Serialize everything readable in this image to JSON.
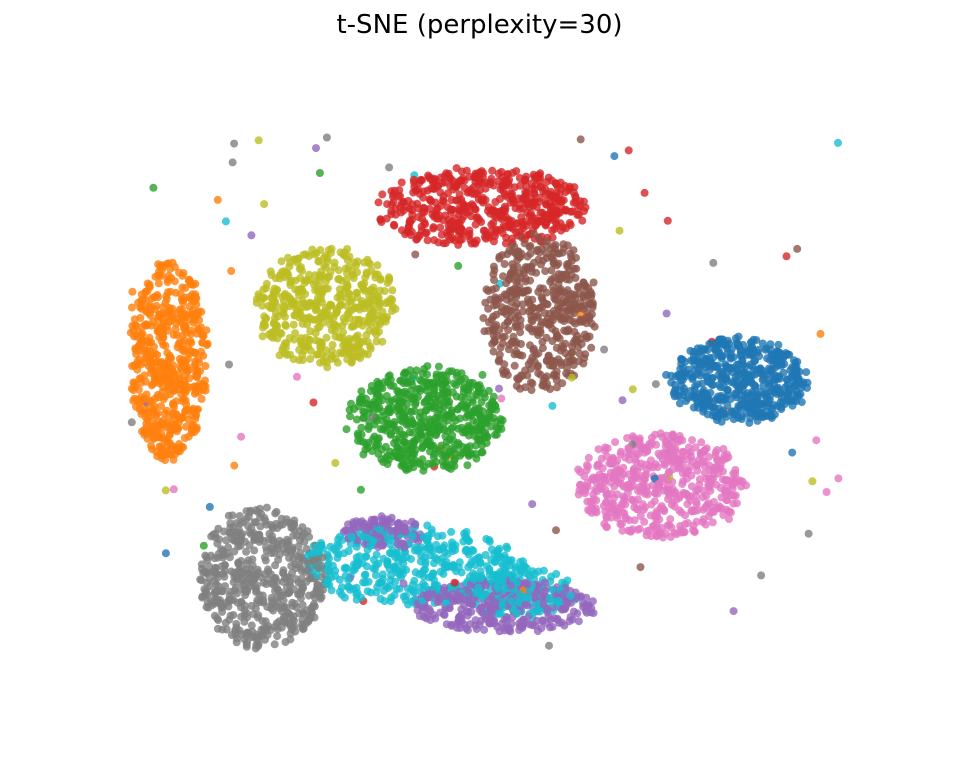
{
  "chart_data": {
    "type": "scatter",
    "title": "t-SNE (perplexity=30)",
    "xlabel": "",
    "ylabel": "",
    "axes_visible": false,
    "grid": false,
    "xlim": [
      -60,
      60
    ],
    "ylim": [
      -48,
      48
    ],
    "marker_opacity": 0.8,
    "series": [
      {
        "color": "#1f77b4",
        "clusters": [
          {
            "cx": 36,
            "cy": 2,
            "rx": 10,
            "ry": 6.5,
            "n": 520
          }
        ]
      },
      {
        "color": "#ff7f0e",
        "clusters": [
          {
            "cx": -44,
            "cy": 5,
            "rx": 5.5,
            "ry": 15,
            "n": 540
          }
        ]
      },
      {
        "color": "#2ca02c",
        "clusters": [
          {
            "cx": -8,
            "cy": -4,
            "rx": 11,
            "ry": 8,
            "n": 540
          }
        ]
      },
      {
        "color": "#d62728",
        "clusters": [
          {
            "cx": 0,
            "cy": 28,
            "rx": 15,
            "ry": 6,
            "n": 520
          }
        ]
      },
      {
        "color": "#9467bd",
        "clusters": [
          {
            "cx": -14,
            "cy": -21,
            "rx": 6,
            "ry": 2.5,
            "n": 110
          },
          {
            "cx": 3,
            "cy": -32,
            "rx": 13,
            "ry": 4,
            "n": 340
          }
        ]
      },
      {
        "color": "#8c564b",
        "clusters": [
          {
            "cx": 8,
            "cy": 12,
            "rx": 8,
            "ry": 12,
            "n": 470
          }
        ]
      },
      {
        "color": "#e377c2",
        "clusters": [
          {
            "cx": 25,
            "cy": -14,
            "rx": 12,
            "ry": 8,
            "n": 520
          }
        ]
      },
      {
        "color": "#7f7f7f",
        "clusters": [
          {
            "cx": -31,
            "cy": -28,
            "rx": 9,
            "ry": 11,
            "n": 520
          }
        ]
      },
      {
        "color": "#bcbd22",
        "clusters": [
          {
            "cx": -22,
            "cy": 13,
            "rx": 10,
            "ry": 9,
            "n": 470
          }
        ]
      },
      {
        "color": "#17becf",
        "clusters": [
          {
            "cx": -10,
            "cy": -26,
            "rx": 16,
            "ry": 6,
            "n": 420
          },
          {
            "cx": 5,
            "cy": -30,
            "rx": 8,
            "ry": 4,
            "n": 150
          }
        ]
      }
    ]
  }
}
